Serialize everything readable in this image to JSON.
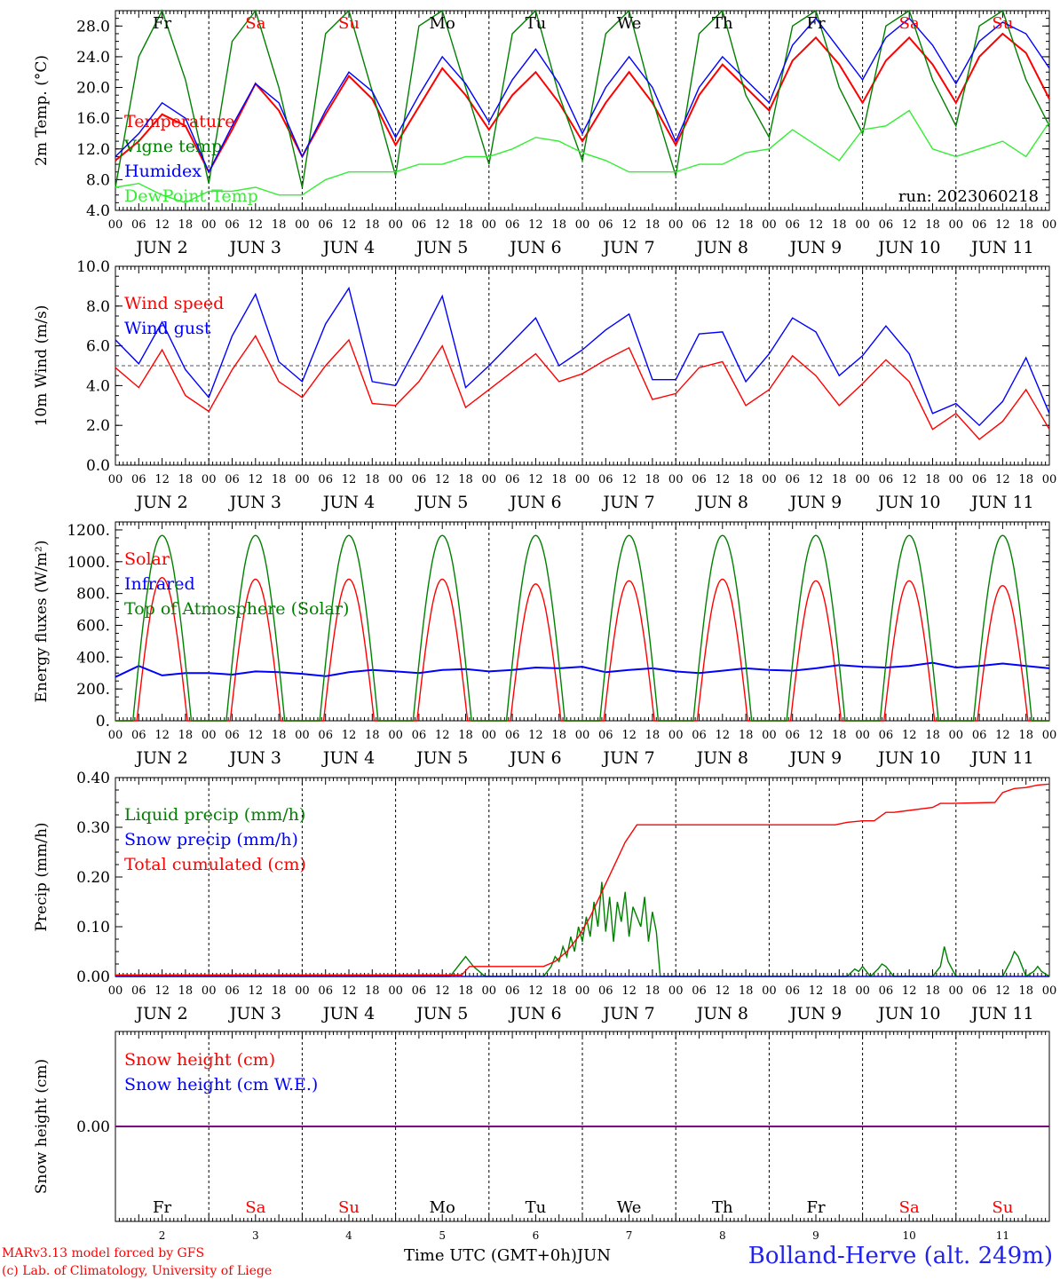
{
  "footer": {
    "model_line": "MARv3.13 model forced by GFS",
    "credit_line": "(c) Lab. of Climatology, University of Liege",
    "time_label": "Time UTC (GMT+0h)",
    "month_label": "JUN",
    "station": "Bolland-Herve (alt. 249m)"
  },
  "colors": {
    "red": "#ff0000",
    "blue": "#0000ff",
    "green": "#008000",
    "lightgreen": "#33ee33",
    "weekend": "#ff0000",
    "weekday": "#000000",
    "snow_line": "#800080"
  },
  "hour_ticks": [
    "00",
    "06",
    "12",
    "18"
  ],
  "end_hour_label": "00",
  "day_numbers": [
    2,
    3,
    4,
    5,
    6,
    7,
    8,
    9,
    10,
    11
  ],
  "day_names": [
    "Fr",
    "Sa",
    "Su",
    "Mo",
    "Tu",
    "We",
    "Th",
    "Fr",
    "Sa",
    "Su"
  ],
  "weekend_flags": [
    false,
    true,
    true,
    false,
    false,
    false,
    false,
    false,
    true,
    true
  ],
  "chart_data": [
    {
      "type": "line",
      "id": "temperature",
      "ylabel": "2m Temp. (°C)",
      "ylim": [
        4,
        30
      ],
      "yticks": [
        4,
        8,
        12,
        16,
        20,
        24,
        28
      ],
      "ytick_labels": [
        "4.0",
        "8.0",
        "12.0",
        "16.0",
        "20.0",
        "24.0",
        "28.0"
      ],
      "x_unit": "hours since 2023-06-02 00 UTC",
      "annotation": "run: 2023060218",
      "series": [
        {
          "name": "Temperature",
          "color": "#ff0000",
          "x": [
            0,
            6,
            12,
            18,
            24,
            30,
            36,
            42,
            48,
            54,
            60,
            66,
            72,
            78,
            84,
            90,
            96,
            102,
            108,
            114,
            120,
            126,
            132,
            138,
            144,
            150,
            156,
            162,
            168,
            174,
            180,
            186,
            192,
            198,
            204,
            210,
            216,
            222,
            228,
            234,
            240
          ],
          "y": [
            10.5,
            13.0,
            16.5,
            15.0,
            9.0,
            14.5,
            20.5,
            17.0,
            11.0,
            16.5,
            21.5,
            18.5,
            12.5,
            17.5,
            22.5,
            19.0,
            14.5,
            19.0,
            22.0,
            18.0,
            13.0,
            18.0,
            22.0,
            18.0,
            12.5,
            19.0,
            23.0,
            20.0,
            17.0,
            23.5,
            26.5,
            23.0,
            18.0,
            23.5,
            26.5,
            23.0,
            18.0,
            24.0,
            27.0,
            24.5,
            18.5
          ]
        },
        {
          "name": "Vigne temp",
          "color": "#008000",
          "x": [
            0,
            6,
            12,
            18,
            24,
            30,
            36,
            42,
            48,
            54,
            60,
            66,
            72,
            78,
            84,
            90,
            96,
            102,
            108,
            114,
            120,
            126,
            132,
            138,
            144,
            150,
            156,
            162,
            168,
            174,
            180,
            186,
            192,
            198,
            204,
            210,
            216,
            222,
            228,
            234,
            240
          ],
          "y": [
            7.0,
            24.0,
            30.0,
            21.0,
            7.5,
            26.0,
            30.0,
            20.0,
            7.0,
            27.0,
            30.0,
            19.5,
            8.5,
            28.0,
            30.0,
            20.0,
            10.0,
            27.0,
            30.0,
            19.0,
            10.5,
            27.0,
            30.0,
            18.5,
            8.5,
            27.0,
            30.0,
            19.0,
            13.5,
            28.0,
            30.0,
            20.0,
            14.0,
            28.0,
            30.0,
            21.0,
            15.0,
            28.0,
            30.0,
            21.0,
            15.0
          ]
        },
        {
          "name": "Humidex",
          "color": "#0000ff",
          "x": [
            0,
            6,
            12,
            18,
            24,
            30,
            36,
            42,
            48,
            54,
            60,
            66,
            72,
            78,
            84,
            90,
            96,
            102,
            108,
            114,
            120,
            126,
            132,
            138,
            144,
            150,
            156,
            162,
            168,
            174,
            180,
            186,
            192,
            198,
            204,
            210,
            216,
            222,
            228,
            234,
            240
          ],
          "y": [
            11.0,
            14.0,
            18.0,
            16.0,
            9.0,
            15.0,
            20.5,
            18.0,
            11.0,
            17.0,
            22.0,
            19.5,
            13.5,
            19.0,
            24.0,
            20.5,
            15.5,
            21.0,
            25.0,
            20.5,
            14.0,
            20.0,
            24.0,
            20.0,
            13.0,
            20.0,
            24.0,
            21.0,
            18.0,
            25.5,
            29.0,
            25.0,
            21.0,
            26.5,
            29.0,
            25.5,
            20.5,
            26.0,
            28.5,
            27.0,
            22.5
          ]
        },
        {
          "name": "DewPoint Temp",
          "color": "#33ee33",
          "x": [
            0,
            6,
            12,
            18,
            24,
            30,
            36,
            42,
            48,
            54,
            60,
            66,
            72,
            78,
            84,
            90,
            96,
            102,
            108,
            114,
            120,
            126,
            132,
            138,
            144,
            150,
            156,
            162,
            168,
            174,
            180,
            186,
            192,
            198,
            204,
            210,
            216,
            222,
            228,
            234,
            240
          ],
          "y": [
            7.0,
            7.5,
            6.0,
            5.0,
            6.5,
            6.5,
            7.0,
            6.0,
            6.0,
            8.0,
            9.0,
            9.0,
            9.0,
            10.0,
            10.0,
            11.0,
            11.0,
            12.0,
            13.5,
            13.0,
            11.5,
            10.5,
            9.0,
            9.0,
            9.0,
            10.0,
            10.0,
            11.5,
            12.0,
            14.5,
            12.5,
            10.5,
            14.5,
            15.0,
            17.0,
            12.0,
            11.0,
            12.0,
            13.0,
            11.0,
            15.5
          ]
        }
      ]
    },
    {
      "type": "line",
      "id": "wind",
      "ylabel": "10m Wind (m/s)",
      "ylim": [
        0,
        10
      ],
      "yticks": [
        0,
        2,
        4,
        6,
        8,
        10
      ],
      "ytick_labels": [
        "0.0",
        "2.0",
        "4.0",
        "6.0",
        "8.0",
        "10.0"
      ],
      "ref_line": 5,
      "x_unit": "hours since 2023-06-02 00 UTC",
      "series": [
        {
          "name": "Wind speed",
          "color": "#ff0000",
          "x": [
            0,
            6,
            12,
            18,
            24,
            30,
            36,
            42,
            48,
            54,
            60,
            66,
            72,
            78,
            84,
            90,
            96,
            102,
            108,
            114,
            120,
            126,
            132,
            138,
            144,
            150,
            156,
            162,
            168,
            174,
            180,
            186,
            192,
            198,
            204,
            210,
            216,
            222,
            228,
            234,
            240
          ],
          "y": [
            4.9,
            3.9,
            5.8,
            3.5,
            2.7,
            4.8,
            6.5,
            4.2,
            3.4,
            5.0,
            6.3,
            3.1,
            3.0,
            4.2,
            6.0,
            2.9,
            3.8,
            4.7,
            5.6,
            4.2,
            4.6,
            5.3,
            5.9,
            3.3,
            3.6,
            4.9,
            5.2,
            3.0,
            3.8,
            5.5,
            4.5,
            3.0,
            4.1,
            5.3,
            4.2,
            1.8,
            2.6,
            1.3,
            2.2,
            3.8,
            1.8
          ]
        },
        {
          "name": "Wind gust",
          "color": "#0000ff",
          "x": [
            0,
            6,
            12,
            18,
            24,
            30,
            36,
            42,
            48,
            54,
            60,
            66,
            72,
            78,
            84,
            90,
            96,
            102,
            108,
            114,
            120,
            126,
            132,
            138,
            144,
            150,
            156,
            162,
            168,
            174,
            180,
            186,
            192,
            198,
            204,
            210,
            216,
            222,
            228,
            234,
            240
          ],
          "y": [
            6.3,
            5.1,
            7.2,
            4.8,
            3.4,
            6.5,
            8.6,
            5.2,
            4.2,
            7.1,
            8.9,
            4.2,
            4.0,
            6.2,
            8.5,
            3.9,
            5.0,
            6.2,
            7.4,
            5.0,
            5.8,
            6.8,
            7.6,
            4.3,
            4.3,
            6.6,
            6.7,
            4.2,
            5.6,
            7.4,
            6.7,
            4.5,
            5.5,
            7.0,
            5.6,
            2.6,
            3.1,
            2.0,
            3.2,
            5.4,
            2.6
          ]
        }
      ]
    },
    {
      "type": "line",
      "id": "energy",
      "ylabel": "Energy fluxes (W/m²)",
      "ylim": [
        0,
        1250
      ],
      "yticks": [
        0,
        200,
        400,
        600,
        800,
        1000,
        1200
      ],
      "ytick_labels": [
        "0.",
        "200.",
        "400.",
        "600.",
        "800.",
        "1000.",
        "1200."
      ],
      "x_unit": "hours since 2023-06-02 00 UTC",
      "diurnal": {
        "sunrise_toa": 4.5,
        "sunset_toa": 19.5,
        "sunrise_solar": 5.5,
        "sunset_solar": 18.5,
        "noon": 12
      },
      "series": [
        {
          "name": "Solar",
          "color": "#ff0000",
          "daily_peak": [
            900,
            890,
            890,
            890,
            860,
            880,
            890,
            880,
            880,
            850
          ]
        },
        {
          "name": "Infrared",
          "color": "#0000ff",
          "x": [
            0,
            6,
            12,
            18,
            24,
            30,
            36,
            42,
            48,
            54,
            60,
            66,
            72,
            78,
            84,
            90,
            96,
            102,
            108,
            114,
            120,
            126,
            132,
            138,
            144,
            150,
            156,
            162,
            168,
            174,
            180,
            186,
            192,
            198,
            204,
            210,
            216,
            222,
            228,
            234,
            240
          ],
          "y": [
            275,
            345,
            285,
            300,
            300,
            290,
            310,
            305,
            295,
            280,
            305,
            320,
            310,
            300,
            320,
            325,
            310,
            320,
            335,
            330,
            340,
            305,
            320,
            330,
            310,
            300,
            315,
            330,
            320,
            315,
            330,
            350,
            340,
            335,
            345,
            365,
            335,
            345,
            360,
            345,
            330
          ]
        },
        {
          "name": "Top of Atmosphere (Solar)",
          "color": "#008000",
          "daily_peak": [
            1165,
            1165,
            1165,
            1165,
            1165,
            1165,
            1165,
            1165,
            1165,
            1165
          ]
        }
      ]
    },
    {
      "type": "line",
      "id": "precip",
      "ylabel": "Precip (mm/h)",
      "ylim": [
        0,
        0.4
      ],
      "yticks": [
        0,
        0.1,
        0.2,
        0.3,
        0.4
      ],
      "ytick_labels": [
        "0.00",
        "0.10",
        "0.20",
        "0.30",
        "0.40"
      ],
      "x_unit": "hours since 2023-06-02 00 UTC",
      "series": [
        {
          "name": "Liquid precip (mm/h)",
          "color": "#008000",
          "x": [
            0,
            86,
            89,
            90,
            92,
            95,
            110,
            112,
            113,
            114,
            115,
            116,
            117,
            118,
            119,
            120,
            121,
            122,
            123,
            124,
            125,
            126,
            127,
            128,
            129,
            130,
            131,
            132,
            133,
            134,
            135,
            136,
            137,
            138,
            139,
            140,
            188,
            190,
            191,
            192,
            194,
            196,
            197,
            198,
            200,
            202,
            210,
            212,
            213,
            214,
            216,
            228,
            230,
            231,
            232,
            233,
            234,
            236,
            237,
            238,
            240
          ],
          "y": [
            0,
            0,
            0.03,
            0.04,
            0.02,
            0,
            0,
            0.02,
            0.04,
            0.03,
            0.06,
            0.04,
            0.08,
            0.05,
            0.1,
            0.07,
            0.12,
            0.08,
            0.15,
            0.1,
            0.19,
            0.09,
            0.16,
            0.07,
            0.15,
            0.11,
            0.17,
            0.08,
            0.14,
            0.12,
            0.1,
            0.16,
            0.07,
            0.13,
            0.09,
            0,
            0,
            0.015,
            0.01,
            0.02,
            0,
            0.015,
            0.025,
            0.02,
            0,
            0,
            0,
            0.02,
            0.06,
            0.03,
            0,
            0,
            0.03,
            0.05,
            0.04,
            0.02,
            0,
            0.01,
            0.02,
            0.01,
            0
          ]
        },
        {
          "name": "Snow precip (mm/h)",
          "color": "#0000ff",
          "x": [
            0,
            240
          ],
          "y": [
            0,
            0
          ]
        },
        {
          "name": "Total cumulated (cm)",
          "color": "#ff0000",
          "x": [
            0,
            89,
            91,
            94,
            110,
            113,
            116,
            119,
            122,
            125,
            128,
            131,
            134,
            137,
            140,
            185,
            188,
            192,
            195,
            198,
            200,
            210,
            212,
            215,
            226,
            228,
            231,
            234,
            237,
            240
          ],
          "y": [
            0.003,
            0.003,
            0.02,
            0.02,
            0.02,
            0.03,
            0.05,
            0.08,
            0.12,
            0.17,
            0.22,
            0.27,
            0.305,
            0.305,
            0.305,
            0.305,
            0.31,
            0.313,
            0.313,
            0.33,
            0.33,
            0.34,
            0.348,
            0.348,
            0.35,
            0.37,
            0.378,
            0.38,
            0.385,
            0.387
          ]
        }
      ]
    },
    {
      "type": "line",
      "id": "snow",
      "ylabel": "Snow height (cm)",
      "ylim": [
        -1,
        1
      ],
      "yticks": [
        0
      ],
      "ytick_labels": [
        "0.00"
      ],
      "x_unit": "hours since 2023-06-02 00 UTC",
      "series": [
        {
          "name": "Snow height (cm)",
          "color": "#ff0000",
          "x": [
            0,
            240
          ],
          "y": [
            0,
            0
          ]
        },
        {
          "name": "Snow height (cm W.E.)",
          "color": "#0000ff",
          "x": [
            0,
            240
          ],
          "y": [
            0,
            0
          ]
        }
      ]
    }
  ]
}
